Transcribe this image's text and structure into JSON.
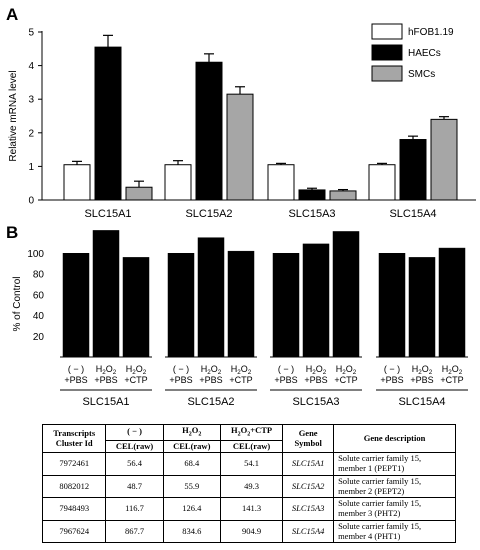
{
  "colors": {
    "hFOB": "#ffffff",
    "HAECs": "#000000",
    "SMCs": "#a6a6a6"
  },
  "panel_a_letter": "A",
  "panel_b_letter": "B",
  "chart_data": [
    {
      "type": "bar",
      "categories": [
        "SLC15A1",
        "SLC15A2",
        "SLC15A3",
        "SLC15A4"
      ],
      "ylabel": "Relative mRNA level",
      "yticks": [
        0,
        1,
        2,
        3,
        4,
        5
      ],
      "ylim": [
        0,
        5
      ],
      "legend_placement": "top-right",
      "error_bars": true,
      "series": [
        {
          "name": "hFOB1.19",
          "values": [
            1.05,
            1.05,
            1.05,
            1.05
          ],
          "errors": [
            0.1,
            0.12,
            0.04,
            0.04
          ]
        },
        {
          "name": "HAECs",
          "values": [
            4.55,
            4.1,
            0.3,
            1.8
          ],
          "errors": [
            0.35,
            0.25,
            0.05,
            0.1
          ]
        },
        {
          "name": "SMCs",
          "values": [
            0.38,
            3.15,
            0.27,
            2.4
          ],
          "errors": [
            0.18,
            0.22,
            0.04,
            0.08
          ]
        }
      ]
    },
    {
      "type": "bar",
      "ylabel": "% of Control",
      "yticks": [
        20,
        40,
        60,
        80,
        100
      ],
      "ylim": [
        0,
        130
      ],
      "groups": [
        {
          "label": "SLC15A1",
          "bars": [
            {
              "l1": "( − )",
              "l2": "+PBS",
              "value": 100
            },
            {
              "l1": "H2O2",
              "l2": "+PBS",
              "value": 122
            },
            {
              "l1": "H2O2",
              "l2": "+CTP",
              "value": 96
            }
          ]
        },
        {
          "label": "SLC15A2",
          "bars": [
            {
              "l1": "( − )",
              "l2": "+PBS",
              "value": 100
            },
            {
              "l1": "H2O2",
              "l2": "+PBS",
              "value": 115
            },
            {
              "l1": "H2O2",
              "l2": "+CTP",
              "value": 102
            }
          ]
        },
        {
          "label": "SLC15A3",
          "bars": [
            {
              "l1": "( − )",
              "l2": "+PBS",
              "value": 100
            },
            {
              "l1": "H2O2",
              "l2": "+PBS",
              "value": 109
            },
            {
              "l1": "H2O2",
              "l2": "+CTP",
              "value": 121
            }
          ]
        },
        {
          "label": "SLC15A4",
          "bars": [
            {
              "l1": "( − )",
              "l2": "+PBS",
              "value": 100
            },
            {
              "l1": "H2O2",
              "l2": "+PBS",
              "value": 96
            },
            {
              "l1": "H2O2",
              "l2": "+CTP",
              "value": 105
            }
          ]
        }
      ]
    },
    {
      "type": "table",
      "headers": {
        "cluster": [
          "Transcripts",
          "Cluster Id"
        ],
        "neg": "( − )",
        "h2o2": "H2O2",
        "h2o2ctp": "H2O2+CTP",
        "cel": "CEL(raw)",
        "symbol": [
          "Gene",
          "Symbol"
        ],
        "desc": "Gene description"
      },
      "rows": [
        {
          "id": "7972461",
          "neg": "56.4",
          "h2o2": "68.4",
          "h2o2ctp": "54.1",
          "symbol": "SLC15A1",
          "desc1": "Solute carrier family 15,",
          "desc2": "member 1 (PEPT1)"
        },
        {
          "id": "8082012",
          "neg": "48.7",
          "h2o2": "55.9",
          "h2o2ctp": "49.3",
          "symbol": "SLC15A2",
          "desc1": "Solute carrier family 15,",
          "desc2": "member 2 (PEPT2)"
        },
        {
          "id": "7948493",
          "neg": "116.7",
          "h2o2": "126.4",
          "h2o2ctp": "141.3",
          "symbol": "SLC15A3",
          "desc1": "Solute carrier family 15,",
          "desc2": "member 3 (PHT2)"
        },
        {
          "id": "7967624",
          "neg": "867.7",
          "h2o2": "834.6",
          "h2o2ctp": "904.9",
          "symbol": "SLC15A4",
          "desc1": "Solute carrier family 15,",
          "desc2": "member 4 (PHT1)"
        }
      ]
    }
  ]
}
